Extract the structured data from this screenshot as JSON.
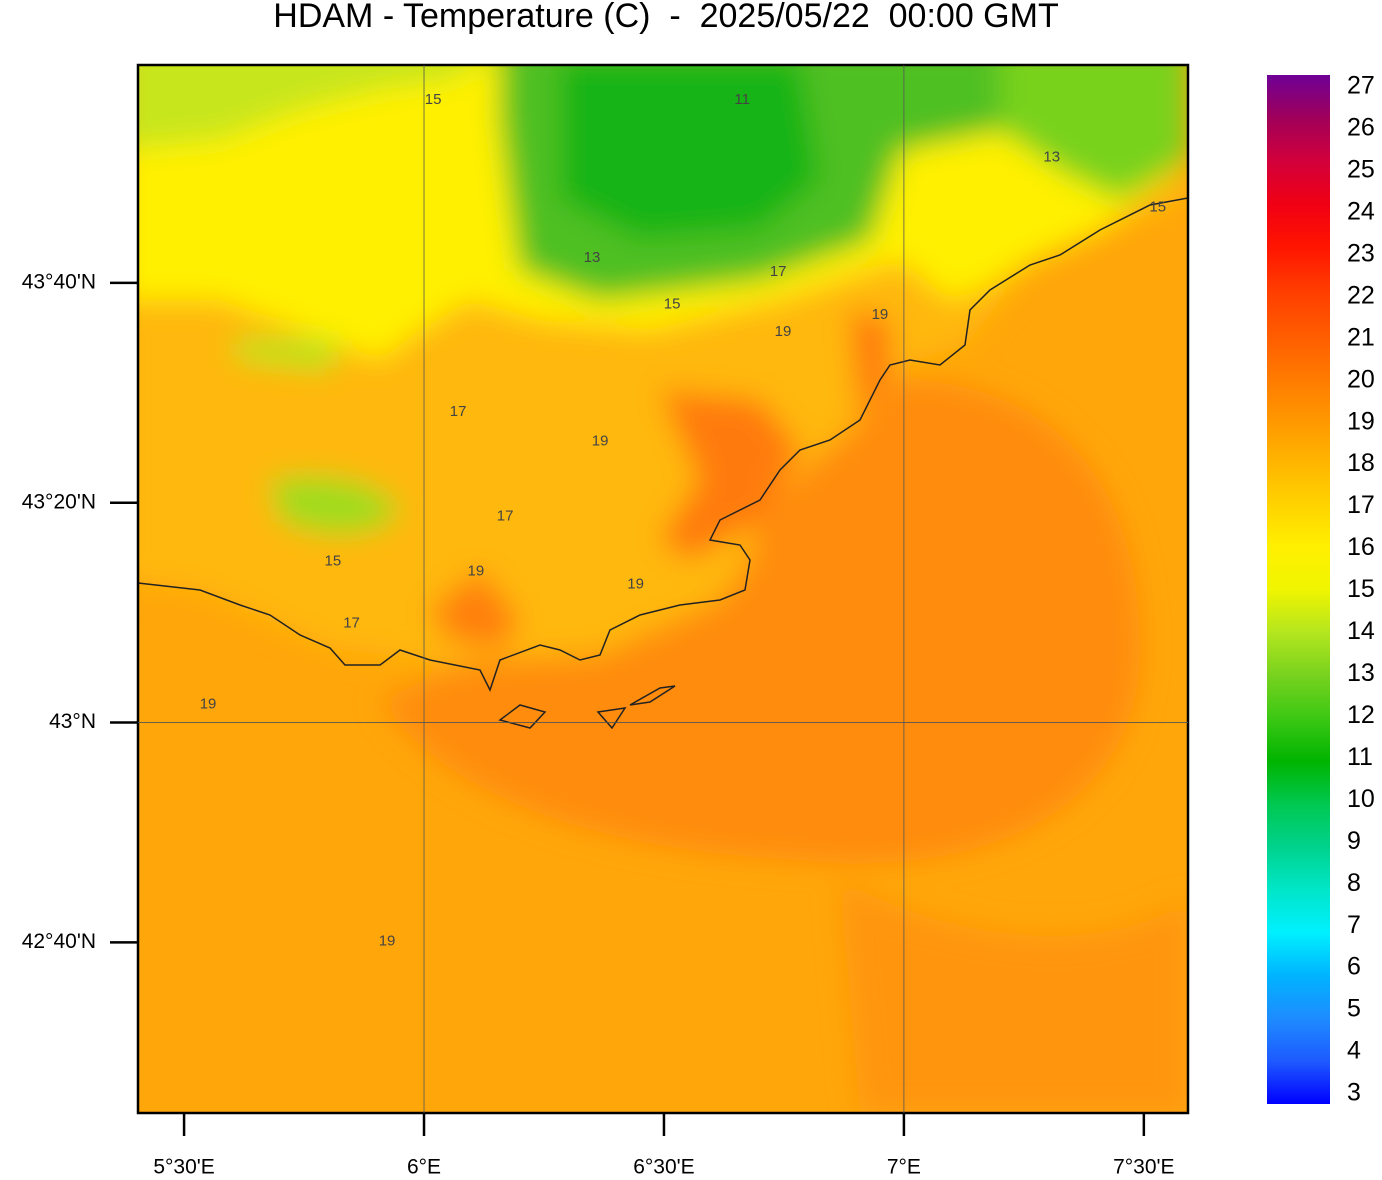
{
  "title": "HDAM - Temperature (C)  -  2025/05/22  00:00 GMT",
  "map": {
    "xlim": [
      5.404,
      7.592
    ],
    "ylim": [
      42.408,
      43.997
    ],
    "xticks": [
      {
        "value": 5.5,
        "label": "5°30'E"
      },
      {
        "value": 6,
        "label": "6°E"
      },
      {
        "value": 6.5,
        "label": "6°30'E"
      },
      {
        "value": 7,
        "label": "7°E"
      },
      {
        "value": 7.5,
        "label": "7°30'E"
      }
    ],
    "yticks": [
      {
        "value": 42.6667,
        "label": "42°40'N"
      },
      {
        "value": 43,
        "label": "43°N"
      },
      {
        "value": 43.3333,
        "label": "43°20'N"
      },
      {
        "value": 43.6667,
        "label": "43°40'N"
      }
    ],
    "contour_labels": [
      {
        "value": 15,
        "lon": 6.019,
        "lat": 43.944
      },
      {
        "value": 11,
        "lon": 6.663,
        "lat": 43.944
      },
      {
        "value": 13,
        "lon": 6.35,
        "lat": 43.704
      },
      {
        "value": 15,
        "lon": 6.517,
        "lat": 43.634
      },
      {
        "value": 17,
        "lon": 6.738,
        "lat": 43.683
      },
      {
        "value": 19,
        "lon": 6.748,
        "lat": 43.592
      },
      {
        "value": 13,
        "lon": 7.308,
        "lat": 43.857
      },
      {
        "value": 15,
        "lon": 7.529,
        "lat": 43.781
      },
      {
        "value": 17,
        "lon": 6.071,
        "lat": 43.471
      },
      {
        "value": 19,
        "lon": 6.367,
        "lat": 43.426
      },
      {
        "value": 17,
        "lon": 6.169,
        "lat": 43.312
      },
      {
        "value": 15,
        "lon": 5.81,
        "lat": 43.244
      },
      {
        "value": 19,
        "lon": 6.108,
        "lat": 43.229
      },
      {
        "value": 19,
        "lon": 6.441,
        "lat": 43.209
      },
      {
        "value": 17,
        "lon": 5.849,
        "lat": 43.15
      },
      {
        "value": 19,
        "lon": 5.55,
        "lat": 43.027
      },
      {
        "value": 19,
        "lon": 5.923,
        "lat": 42.668
      },
      {
        "value": 19,
        "lon": 6.95,
        "lat": 43.618
      }
    ]
  },
  "colorbar": {
    "ticks": [
      3,
      4,
      5,
      6,
      7,
      8,
      9,
      10,
      11,
      12,
      13,
      14,
      15,
      16,
      17,
      18,
      19,
      20,
      21,
      22,
      23,
      24,
      25,
      26,
      27
    ],
    "colors": [
      "#0000ff",
      "#1e5aff",
      "#1e8cff",
      "#00b4ff",
      "#00f0ff",
      "#00e6c8",
      "#00d28c",
      "#00c850",
      "#00b400",
      "#3cc814",
      "#78d21e",
      "#b4e61e",
      "#f0f500",
      "#fff000",
      "#ffd200",
      "#ffb400",
      "#ff9600",
      "#ff7800",
      "#ff5a00",
      "#ff3c00",
      "#ff1400",
      "#f00014",
      "#d2003c",
      "#a0005a",
      "#6e0096"
    ]
  }
}
